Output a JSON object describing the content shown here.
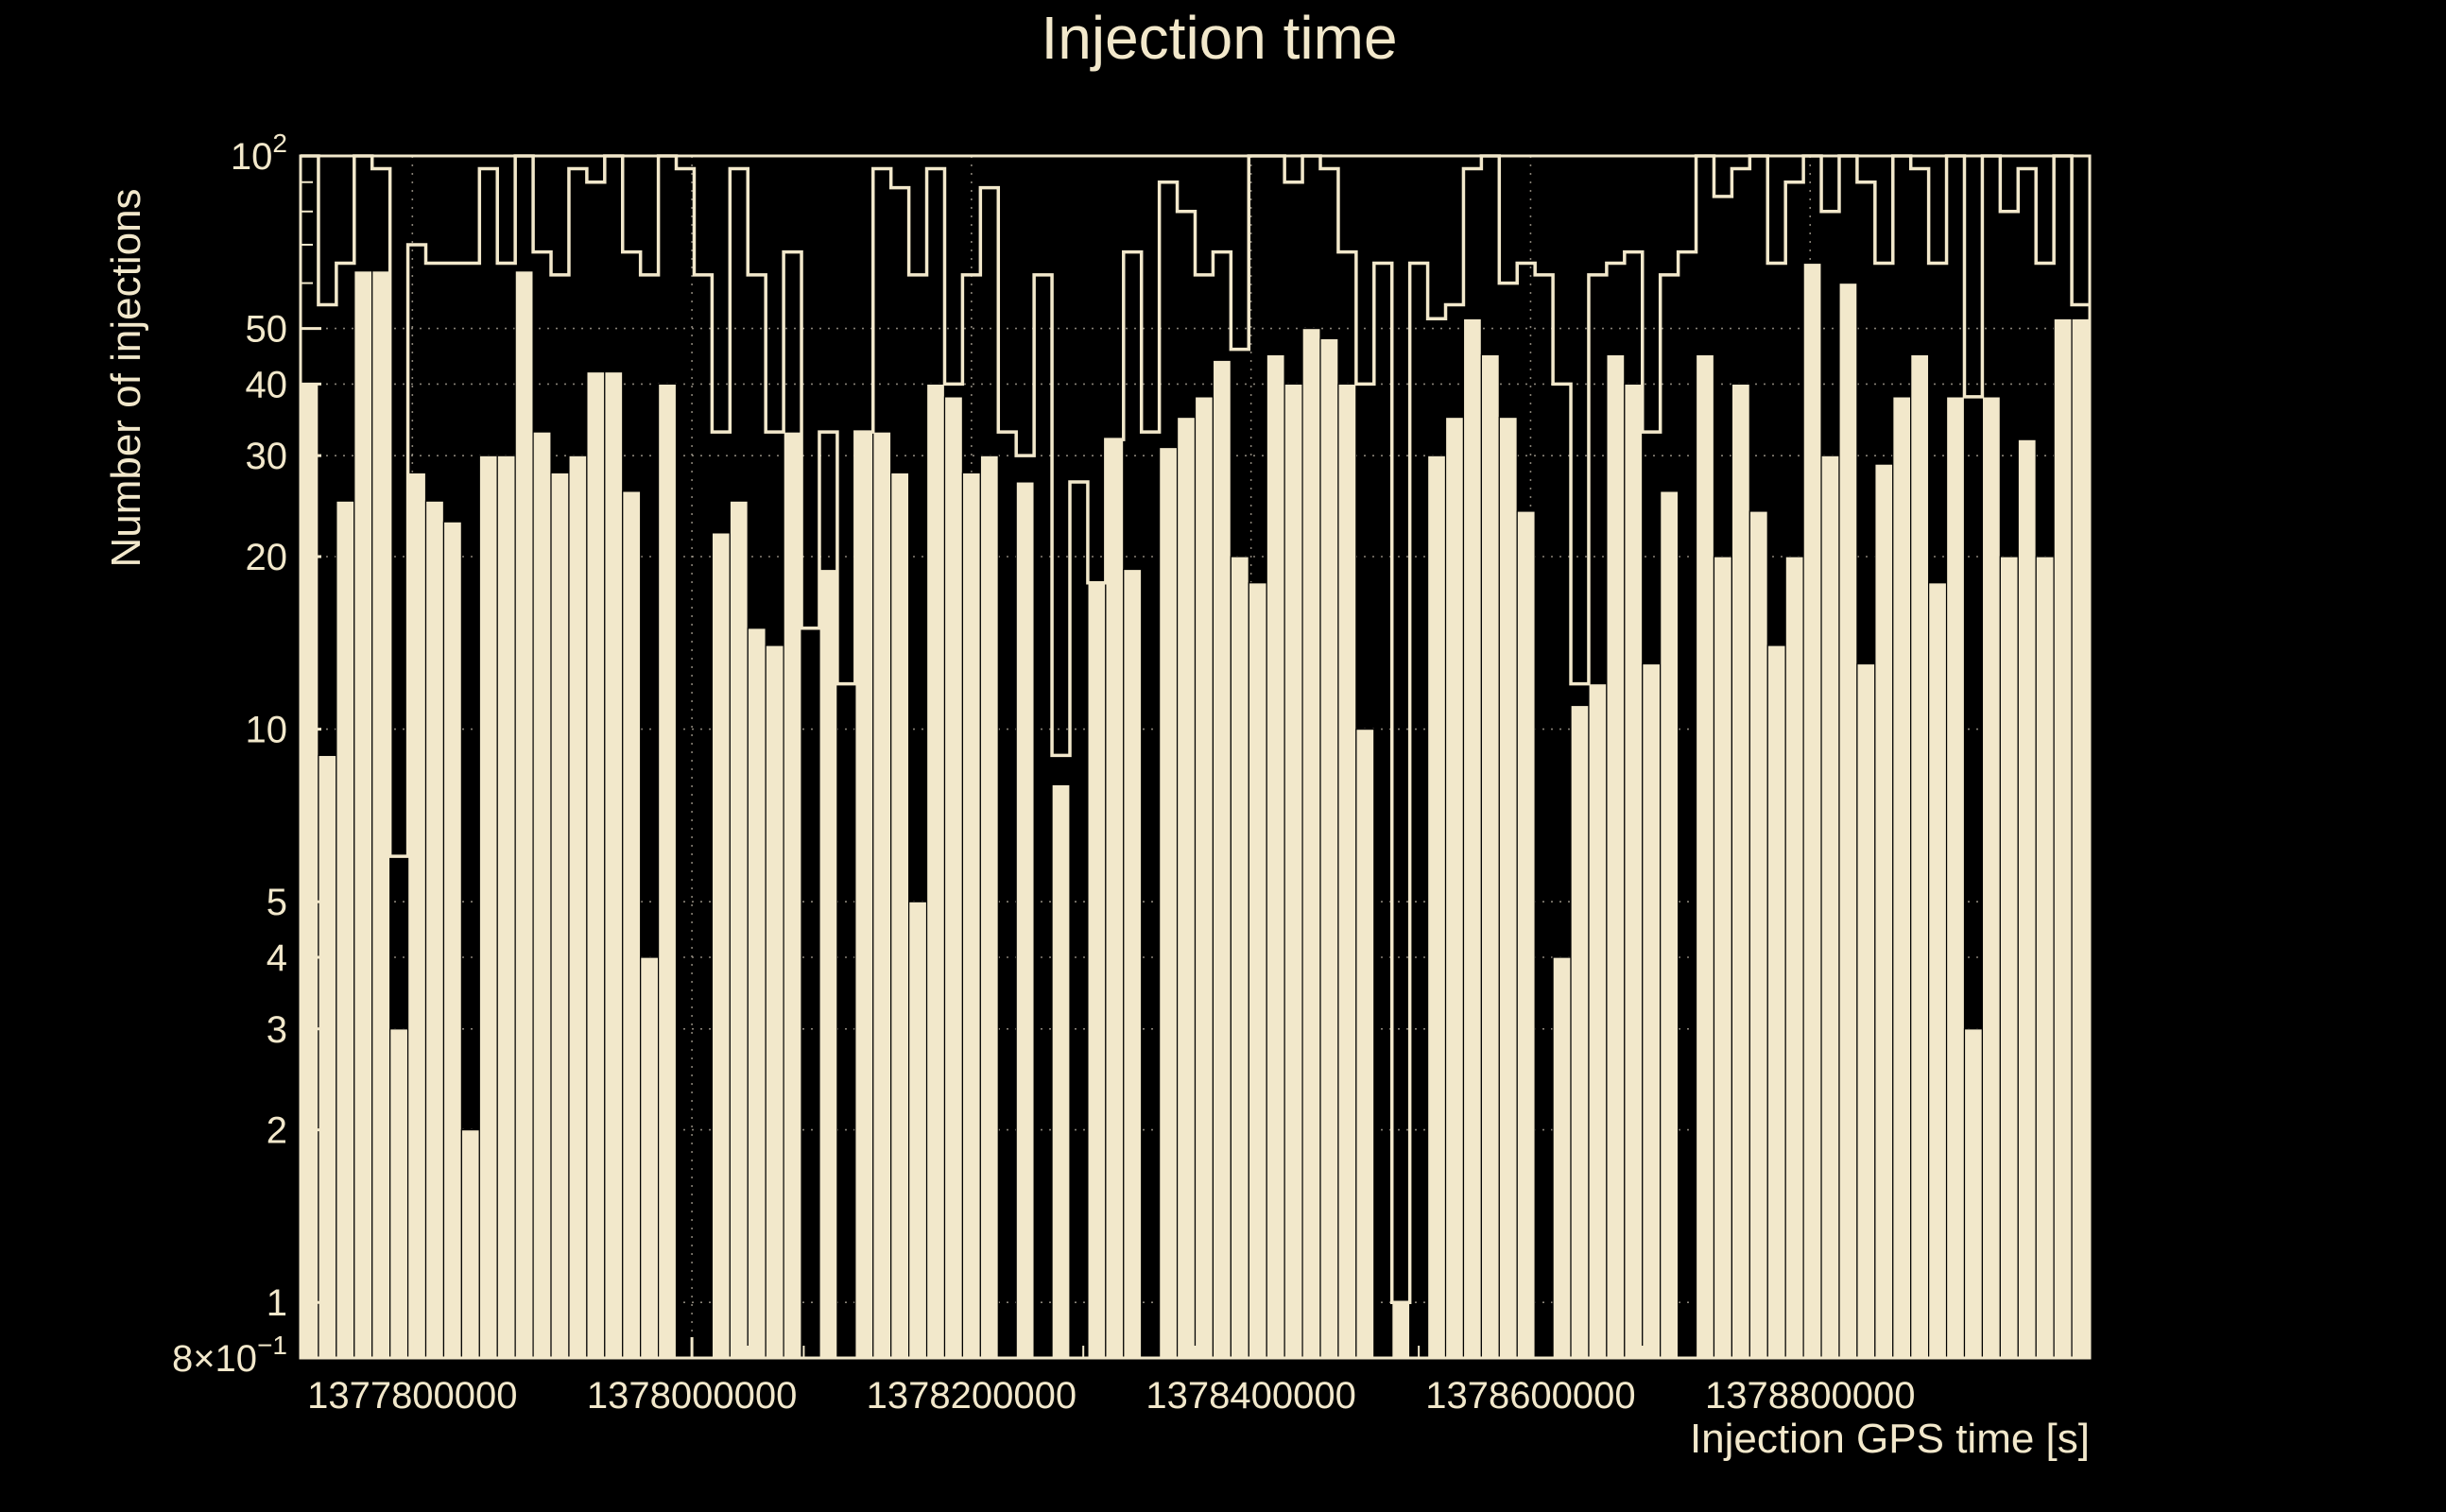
{
  "title": "Injection time",
  "axes": {
    "y_label": "Number of injections",
    "x_label": "Injection GPS time [s]"
  },
  "colors": {
    "background": "#000000",
    "foreground": "#f2e8cb",
    "grid": "#a9a294"
  },
  "chart_data": {
    "type": "bar",
    "subtype": "step-histogram-log-y",
    "title": "Injection time",
    "xlabel": "Injection GPS time [s]",
    "ylabel": "Number of injections",
    "yscale": "log",
    "ylim": [
      0.8,
      100
    ],
    "xlim": [
      1377720000,
      1379000000
    ],
    "x_start": 1377720000,
    "bin_width_s": 12800,
    "n_bins": 100,
    "grid": true,
    "xticks": [
      {
        "value": 1377800000,
        "label": "1377800000"
      },
      {
        "value": 1378000000,
        "label": "1378000000"
      },
      {
        "value": 1378200000,
        "label": "1378200000"
      },
      {
        "value": 1378400000,
        "label": "1378400000"
      },
      {
        "value": 1378600000,
        "label": "1378600000"
      },
      {
        "value": 1378800000,
        "label": "1378800000"
      }
    ],
    "yticks": [
      {
        "value": 100,
        "label": "10",
        "sup": "2"
      },
      {
        "value": 50,
        "label": "50"
      },
      {
        "value": 40,
        "label": "40"
      },
      {
        "value": 30,
        "label": "30"
      },
      {
        "value": 20,
        "label": "20"
      },
      {
        "value": 10,
        "label": "10"
      },
      {
        "value": 5,
        "label": "5"
      },
      {
        "value": 4,
        "label": "4"
      },
      {
        "value": 3,
        "label": "3"
      },
      {
        "value": 2,
        "label": "2"
      },
      {
        "value": 1,
        "label": "1"
      },
      {
        "value": 0.8,
        "label": "8×10",
        "sup": "−1"
      }
    ],
    "series": [
      {
        "name": "injections-filled",
        "style": "filled",
        "color": "#f2e8cb",
        "values": [
          40,
          9,
          25,
          63,
          63,
          3,
          28,
          25,
          23,
          2,
          30,
          30,
          63,
          33,
          28,
          30,
          42,
          42,
          26,
          4,
          40,
          0,
          0,
          22,
          25,
          15,
          14,
          33,
          0,
          19,
          0,
          33,
          33,
          28,
          5,
          40,
          38,
          28,
          30,
          0,
          27,
          0,
          8,
          0,
          18,
          32,
          19,
          0,
          31,
          35,
          38,
          44,
          20,
          18,
          45,
          40,
          50,
          48,
          40,
          10,
          0,
          1,
          0,
          30,
          35,
          52,
          45,
          35,
          24,
          0,
          4,
          11,
          12,
          45,
          40,
          13,
          26,
          0,
          45,
          20,
          40,
          24,
          14,
          20,
          65,
          30,
          60,
          13,
          29,
          38,
          45,
          18,
          38,
          3,
          38,
          20,
          32,
          20,
          52,
          52
        ]
      },
      {
        "name": "injections-outline",
        "style": "step-outline",
        "color": "#f2e8cb",
        "values": [
          100,
          55,
          65,
          100,
          95,
          6,
          70,
          65,
          65,
          65,
          95,
          65,
          100,
          68,
          62,
          95,
          90,
          100,
          68,
          62,
          100,
          95,
          62,
          33,
          95,
          62,
          33,
          68,
          15,
          33,
          12,
          33,
          95,
          88,
          62,
          95,
          40,
          62,
          88,
          33,
          30,
          62,
          9,
          27,
          18,
          32,
          68,
          33,
          90,
          80,
          62,
          68,
          46,
          100,
          100,
          90,
          100,
          95,
          68,
          40,
          65,
          1,
          65,
          52,
          55,
          95,
          100,
          60,
          65,
          62,
          40,
          12,
          62,
          65,
          68,
          33,
          62,
          68,
          100,
          85,
          95,
          100,
          65,
          90,
          100,
          80,
          100,
          90,
          65,
          100,
          95,
          65,
          100,
          38,
          100,
          80,
          95,
          65,
          100,
          55
        ]
      }
    ]
  }
}
